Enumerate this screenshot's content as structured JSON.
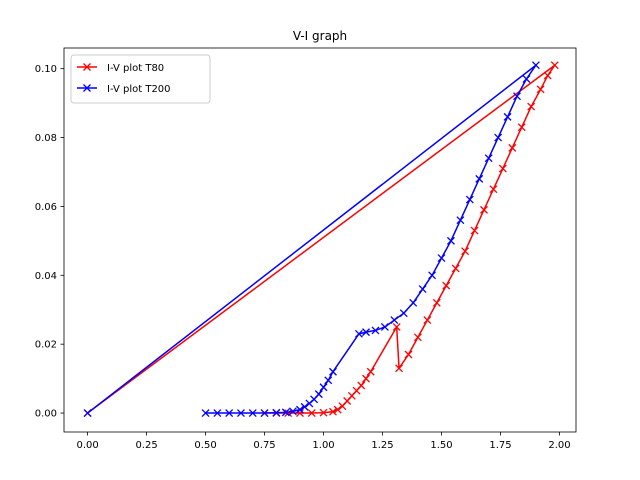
{
  "chart_data": {
    "type": "line",
    "title": "V-I graph",
    "xlabel": "",
    "ylabel": "",
    "xlim": [
      -0.1,
      2.07
    ],
    "ylim": [
      -0.0055,
      0.106
    ],
    "xticks": [
      "0.00",
      "0.25",
      "0.50",
      "0.75",
      "1.00",
      "1.25",
      "1.50",
      "1.75",
      "2.00"
    ],
    "yticks": [
      "0.00",
      "0.02",
      "0.04",
      "0.06",
      "0.08",
      "0.10"
    ],
    "xtick_values": [
      0,
      0.25,
      0.5,
      0.75,
      1.0,
      1.25,
      1.5,
      1.75,
      2.0
    ],
    "ytick_values": [
      0,
      0.02,
      0.04,
      0.06,
      0.08,
      0.1
    ],
    "grid": false,
    "legend_position": "top-left",
    "series": [
      {
        "name": "I-V plot T80",
        "color": "#ff0000",
        "marker": "x",
        "points": [
          [
            0.0,
            0.0
          ],
          [
            1.98,
            0.101
          ],
          [
            1.95,
            0.098
          ],
          [
            1.92,
            0.094
          ],
          [
            1.88,
            0.089
          ],
          [
            1.84,
            0.083
          ],
          [
            1.8,
            0.077
          ],
          [
            1.76,
            0.071
          ],
          [
            1.72,
            0.065
          ],
          [
            1.68,
            0.059
          ],
          [
            1.64,
            0.053
          ],
          [
            1.6,
            0.047
          ],
          [
            1.56,
            0.042
          ],
          [
            1.52,
            0.037
          ],
          [
            1.48,
            0.032
          ],
          [
            1.44,
            0.027
          ],
          [
            1.4,
            0.022
          ],
          [
            1.36,
            0.017
          ],
          [
            1.32,
            0.013
          ],
          [
            1.31,
            0.025
          ],
          [
            1.2,
            0.012
          ],
          [
            1.18,
            0.01
          ],
          [
            1.16,
            0.008
          ],
          [
            1.14,
            0.0065
          ],
          [
            1.12,
            0.005
          ],
          [
            1.1,
            0.0035
          ],
          [
            1.08,
            0.002
          ],
          [
            1.06,
            0.001
          ],
          [
            1.04,
            0.0004
          ],
          [
            1.0,
            0.0001
          ],
          [
            0.95,
            0.0
          ],
          [
            0.9,
            0.0
          ],
          [
            0.85,
            0.0
          ],
          [
            0.8,
            0.0
          ],
          [
            0.75,
            0.0
          ]
        ]
      },
      {
        "name": "I-V plot T200",
        "color": "#0000ff",
        "marker": "x",
        "points": [
          [
            0.0,
            0.0
          ],
          [
            1.9,
            0.101
          ],
          [
            1.86,
            0.097
          ],
          [
            1.82,
            0.092
          ],
          [
            1.78,
            0.086
          ],
          [
            1.74,
            0.08
          ],
          [
            1.7,
            0.074
          ],
          [
            1.66,
            0.068
          ],
          [
            1.62,
            0.062
          ],
          [
            1.58,
            0.056
          ],
          [
            1.54,
            0.05
          ],
          [
            1.5,
            0.045
          ],
          [
            1.46,
            0.04
          ],
          [
            1.42,
            0.036
          ],
          [
            1.38,
            0.032
          ],
          [
            1.34,
            0.029
          ],
          [
            1.3,
            0.027
          ],
          [
            1.26,
            0.025
          ],
          [
            1.22,
            0.024
          ],
          [
            1.18,
            0.0235
          ],
          [
            1.15,
            0.023
          ],
          [
            1.04,
            0.012
          ],
          [
            1.02,
            0.0095
          ],
          [
            1.0,
            0.0075
          ],
          [
            0.98,
            0.0055
          ],
          [
            0.96,
            0.004
          ],
          [
            0.94,
            0.0028
          ],
          [
            0.92,
            0.0018
          ],
          [
            0.9,
            0.001
          ],
          [
            0.87,
            0.0005
          ],
          [
            0.84,
            0.0002
          ],
          [
            0.8,
            0.0001
          ],
          [
            0.75,
            0.0
          ],
          [
            0.7,
            0.0
          ],
          [
            0.65,
            0.0
          ],
          [
            0.6,
            0.0
          ],
          [
            0.55,
            0.0
          ],
          [
            0.5,
            0.0
          ]
        ]
      }
    ]
  }
}
